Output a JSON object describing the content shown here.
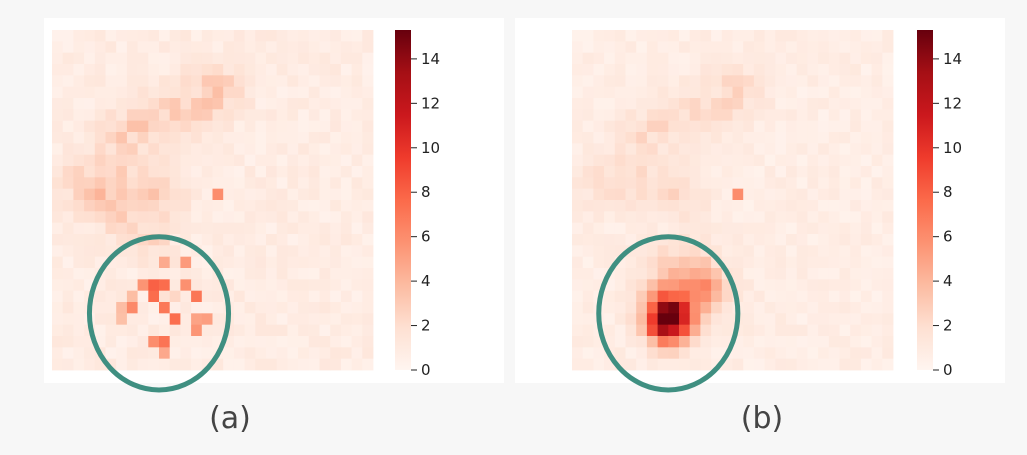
{
  "chart_data": [
    {
      "type": "heatmap",
      "title": "",
      "caption": "(a)",
      "grid": false,
      "grid_size": [
        30,
        30
      ],
      "colormap": "Reds",
      "value_range": [
        0,
        15.3
      ],
      "colorbar_ticks": [
        0,
        2,
        4,
        6,
        8,
        10,
        12,
        14
      ],
      "colorbar_tick_labels": [
        "0",
        "2",
        "4",
        "6",
        "8",
        "10",
        "12",
        "14"
      ],
      "background_level": 0.8,
      "features": [
        {
          "kind": "ridge",
          "from": [
            6,
            9
          ],
          "to": [
            15,
            5
          ],
          "width": 1.8,
          "peak": 2.2
        },
        {
          "kind": "ridge",
          "from": [
            2,
            13
          ],
          "to": [
            10,
            14
          ],
          "width": 1.6,
          "peak": 1.8
        },
        {
          "kind": "ridge",
          "from": [
            4,
            15
          ],
          "to": [
            9,
            18
          ],
          "width": 1.4,
          "peak": 1.5
        },
        {
          "kind": "spot",
          "at": [
            15,
            14
          ],
          "value": 6
        },
        {
          "kind": "scatter",
          "center": [
            10,
            24
          ],
          "radius": 4.5,
          "peak": 6,
          "count": 28
        },
        {
          "kind": "spot",
          "at": [
            9,
            22
          ],
          "value": 8
        },
        {
          "kind": "spot",
          "at": [
            9,
            23
          ],
          "value": 7.5
        },
        {
          "kind": "spot",
          "at": [
            11,
            25
          ],
          "value": 6
        }
      ],
      "annotation": {
        "kind": "circle",
        "center": [
          9.5,
          24.5
        ],
        "radius": 6.5,
        "color": "#3f8f81"
      }
    },
    {
      "type": "heatmap",
      "title": "",
      "caption": "(b)",
      "grid": false,
      "grid_size": [
        30,
        30
      ],
      "colormap": "Reds",
      "value_range": [
        0,
        15.3
      ],
      "colorbar_ticks": [
        0,
        2,
        4,
        6,
        8,
        10,
        12,
        14
      ],
      "colorbar_tick_labels": [
        "0",
        "2",
        "4",
        "6",
        "8",
        "10",
        "12",
        "14"
      ],
      "background_level": 0.7,
      "features": [
        {
          "kind": "ridge",
          "from": [
            6,
            9
          ],
          "to": [
            15,
            5
          ],
          "width": 1.8,
          "peak": 1.6
        },
        {
          "kind": "ridge",
          "from": [
            2,
            13
          ],
          "to": [
            10,
            14
          ],
          "width": 1.6,
          "peak": 1.3
        },
        {
          "kind": "spot",
          "at": [
            15,
            14
          ],
          "value": 6
        },
        {
          "kind": "blob",
          "center": [
            8.5,
            25
          ],
          "radius": 1.9,
          "peak": 15
        },
        {
          "kind": "blob",
          "center": [
            10,
            22
          ],
          "radius": 3.2,
          "peak": 3.5
        },
        {
          "kind": "blob",
          "center": [
            12,
            22.5
          ],
          "radius": 1.6,
          "peak": 3.0
        }
      ],
      "annotation": {
        "kind": "circle",
        "center": [
          8.5,
          24.5
        ],
        "radius": 6.5,
        "color": "#3f8f81"
      }
    }
  ]
}
